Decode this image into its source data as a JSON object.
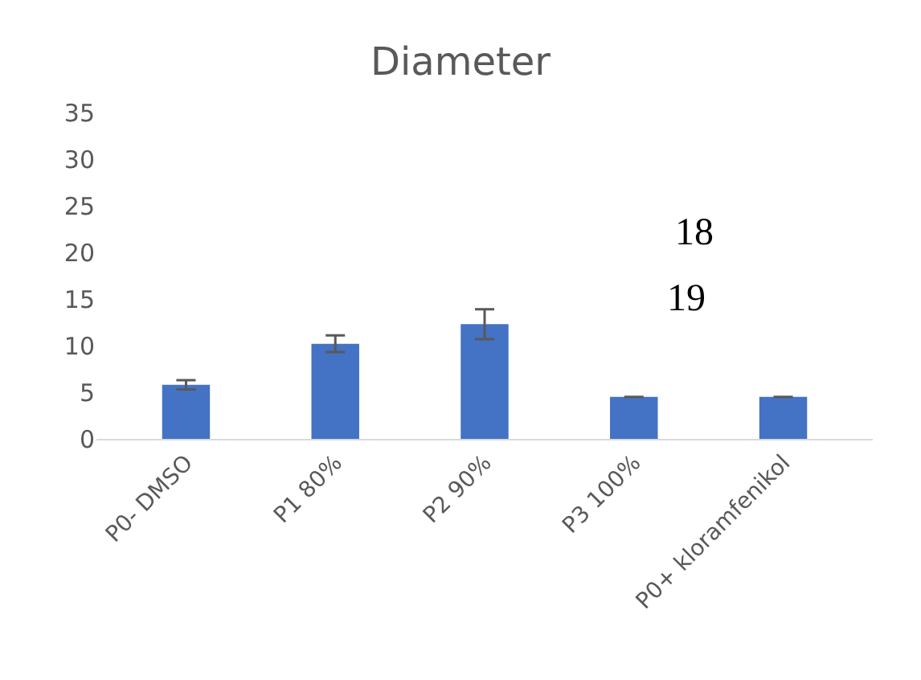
{
  "chart_data": {
    "type": "bar",
    "title": "Diameter",
    "categories": [
      "P0- DMSO",
      "P1 80%",
      "P2 90%",
      "P3 100%",
      "P0+ kloramfenikol"
    ],
    "values": [
      5.8,
      10.2,
      12.3,
      4.5,
      4.5
    ],
    "errors": [
      0.5,
      0.9,
      1.6,
      null,
      null
    ],
    "color": "#4472c4",
    "ylim": [
      0,
      35
    ],
    "yticks": [
      0,
      5,
      10,
      15,
      20,
      25,
      30,
      35
    ],
    "grid": false,
    "legend": false,
    "annotations": [
      "18",
      "19"
    ]
  }
}
